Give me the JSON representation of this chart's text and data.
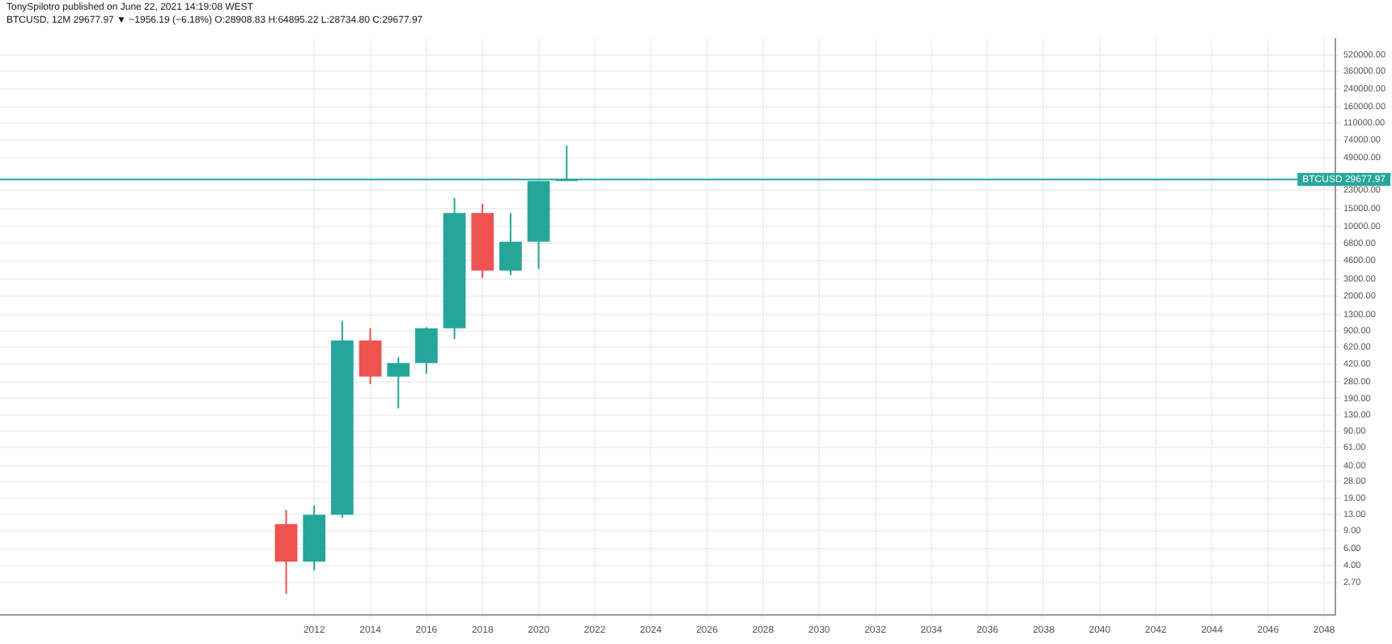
{
  "chart_data": {
    "type": "candlestick",
    "title": "TonySpilotro published on June 22, 2021 14:19:08 WEST",
    "subtitle": "BTCUSD, 12M 29677.97 ▼ −1956.19 (−6.18%) O:28908.83 H:64895.22 L:28734.80 C:29677.97",
    "x": [
      2011,
      2012,
      2013,
      2014,
      2015,
      2016,
      2017,
      2018,
      2019,
      2020,
      2021
    ],
    "ohlc": [
      [
        10.5,
        14.5,
        2.1,
        4.4
      ],
      [
        4.4,
        16.1,
        3.6,
        13.0
      ],
      [
        13.0,
        1143,
        12.1,
        726
      ],
      [
        726,
        960,
        264,
        314
      ],
      [
        314,
        494,
        151,
        430
      ],
      [
        430,
        980,
        337,
        960
      ],
      [
        960,
        19400,
        750,
        13700
      ],
      [
        13700,
        16900,
        3050,
        3630
      ],
      [
        3630,
        13700,
        3270,
        7050
      ],
      [
        7050,
        28600,
        3760,
        28600
      ],
      [
        28908.83,
        64895.22,
        28734.8,
        29677.97
      ]
    ],
    "colors": [
      "#ef5350",
      "#26a69a",
      "#26a69a",
      "#ef5350",
      "#26a69a",
      "#26a69a",
      "#26a69a",
      "#ef5350",
      "#26a69a",
      "#26a69a",
      "#26a69a"
    ],
    "log": "y",
    "grid": true,
    "xlim": [
      2000.8,
      2048.4
    ],
    "xticks": [
      2012,
      2014,
      2016,
      2018,
      2020,
      2022,
      2024,
      2026,
      2028,
      2030,
      2032,
      2034,
      2036,
      2038,
      2040,
      2042,
      2044,
      2046,
      2048
    ],
    "ylim": [
      1.3,
      760000
    ],
    "yticks": [
      {
        "value": 2.7,
        "label": "2.70"
      },
      {
        "value": 4,
        "label": "4.00"
      },
      {
        "value": 6,
        "label": "6.00"
      },
      {
        "value": 9,
        "label": "9.00"
      },
      {
        "value": 13,
        "label": "13.00"
      },
      {
        "value": 19,
        "label": "19.00"
      },
      {
        "value": 28,
        "label": "28.00"
      },
      {
        "value": 40,
        "label": "40.00"
      },
      {
        "value": 61,
        "label": "61.00"
      },
      {
        "value": 90,
        "label": "90.00"
      },
      {
        "value": 130,
        "label": "130.00"
      },
      {
        "value": 190,
        "label": "190.00"
      },
      {
        "value": 280,
        "label": "280.00"
      },
      {
        "value": 420,
        "label": "420.00"
      },
      {
        "value": 620,
        "label": "620.00"
      },
      {
        "value": 900,
        "label": "900.00"
      },
      {
        "value": 1300,
        "label": "1300.00"
      },
      {
        "value": 2000,
        "label": "2000.00"
      },
      {
        "value": 3000,
        "label": "3000.00"
      },
      {
        "value": 4600,
        "label": "4600.00"
      },
      {
        "value": 6800,
        "label": "6800.00"
      },
      {
        "value": 10000,
        "label": "10000.00"
      },
      {
        "value": 15000,
        "label": "15000.00"
      },
      {
        "value": 23000,
        "label": "23000.00"
      },
      {
        "value": 49000,
        "label": "49000.00"
      },
      {
        "value": 74000,
        "label": "74000.00"
      },
      {
        "value": 110000,
        "label": "110000.00"
      },
      {
        "value": 160000,
        "label": "160000.00"
      },
      {
        "value": 240000,
        "label": "240000.00"
      },
      {
        "value": 360000,
        "label": "360000.00"
      },
      {
        "value": 520000,
        "label": "520000.00"
      }
    ],
    "ref_lines": [
      {
        "axis": "y",
        "value": 29677.97,
        "label": "BTCUSD 29677.97",
        "color": "#26a69a"
      }
    ]
  }
}
